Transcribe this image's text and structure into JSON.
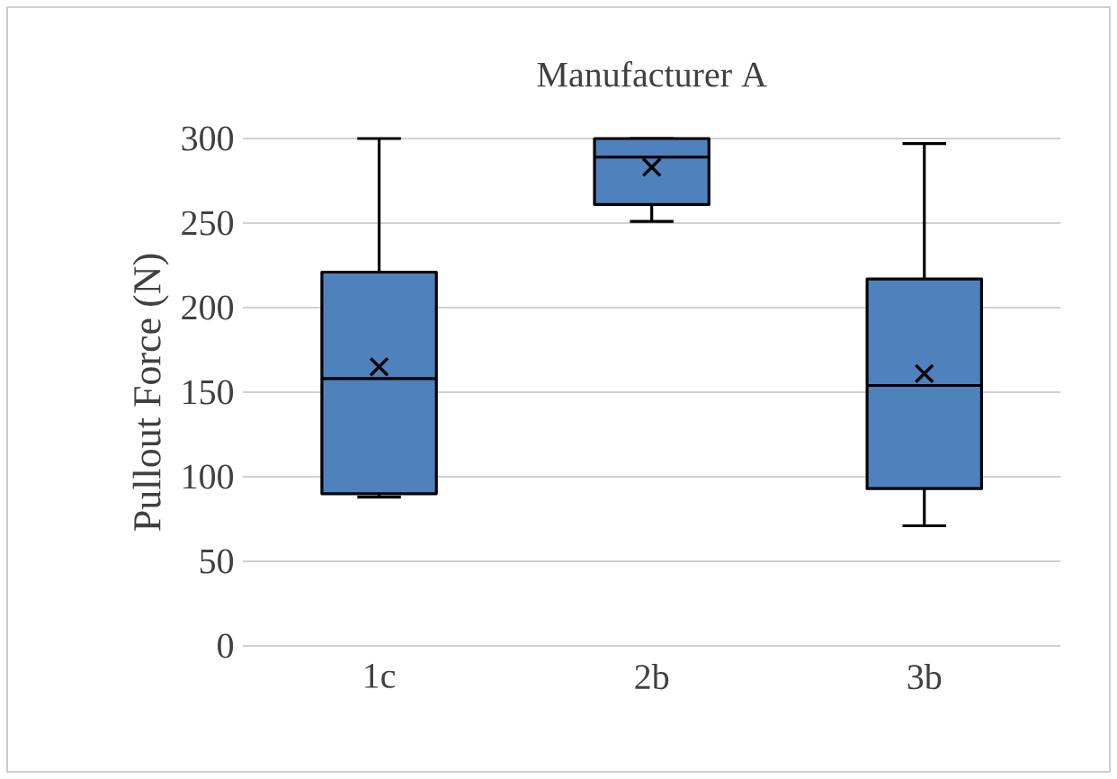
{
  "chart_data": {
    "type": "box",
    "title": "Manufacturer A",
    "ylabel": "Pullout Force (N)",
    "categories": [
      "1c",
      "2b",
      "3b"
    ],
    "color": "#4f81bd",
    "boxes": [
      {
        "low": 88,
        "q1": 90,
        "median": 158,
        "q3": 221,
        "high": 300,
        "mean": 165
      },
      {
        "low": 251,
        "q1": 261,
        "median": 289,
        "q3": 300,
        "high": 300,
        "mean": 283
      },
      {
        "low": 71,
        "q1": 93,
        "median": 154,
        "q3": 217,
        "high": 297,
        "mean": 161
      }
    ],
    "ylim": [
      0,
      300
    ],
    "yticks": [
      0,
      50,
      100,
      150,
      200,
      250,
      300
    ],
    "grid": "y"
  }
}
